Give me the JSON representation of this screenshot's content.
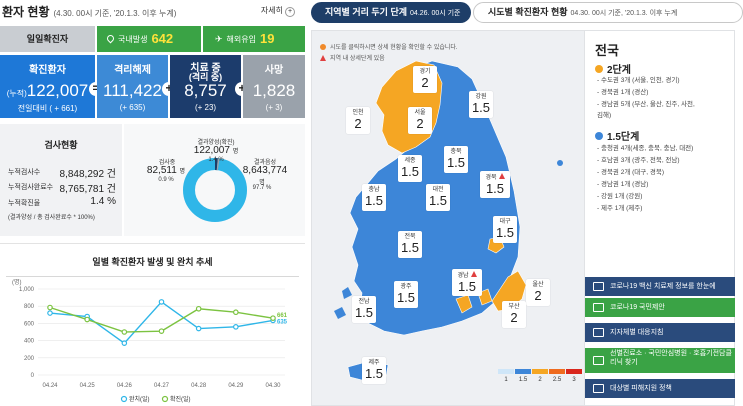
{
  "header": {
    "title": "환자 현황",
    "subtitle": "(4.30. 00시 기준, '20.1.3. 이후 누계)",
    "more_label": "자세히",
    "more_icon": "plus-circle-icon"
  },
  "daily_confirmed": {
    "label": "일일확진자",
    "domestic_label": "국내발생",
    "domestic_value": "642",
    "domestic_icon": "location-pin-icon",
    "overseas_label": "해외유입",
    "overseas_value": "19",
    "overseas_icon": "airplane-icon"
  },
  "summary": {
    "confirmed": {
      "label": "확진환자",
      "prefix": "(누적)",
      "value": "122,007",
      "sub": "전일대비 ( + 661)"
    },
    "released": {
      "label": "격리해제",
      "value": "111,422",
      "sub": "(+ 635)"
    },
    "isolated": {
      "label": "치료 중",
      "label2": "(격리 중)",
      "value": "8,757",
      "sub": "(+ 23)"
    },
    "deaths": {
      "label": "사망",
      "value": "1,828",
      "sub": "(+ 3)"
    },
    "op_minus": "=",
    "op_plus1": "+",
    "op_plus2": "+"
  },
  "tests": {
    "title": "검사현황",
    "items": [
      {
        "label": "누적검사수",
        "value": "8,848,292 건"
      },
      {
        "label": "누적검사완료수",
        "value": "8,765,781 건"
      },
      {
        "label": "누적확진율",
        "value": "1.4 %"
      }
    ],
    "note": "(결과양성 / 총 검사완료수 * 100%)"
  },
  "donut": {
    "positive_label": "결과양성(확진)",
    "positive_value": "122,007",
    "positive_unit": "명",
    "positive_pct": "1.4 %",
    "testing_label": "검사중",
    "testing_value": "82,511",
    "testing_unit": "명",
    "testing_pct": "0.9 %",
    "negative_label": "결과음성",
    "negative_value": "8,643,774",
    "negative_unit": "명",
    "negative_pct": "97.7 %",
    "negative_color": "#2fb6e8",
    "positive_color": "#1e3e68",
    "testing_color": "#9aa2ab"
  },
  "trend": {
    "title": "일별 확진환자 발생 및 완치 추세",
    "unit": "(명)",
    "legend_recovered": "완치(일)",
    "legend_confirmed": "확진(일)"
  },
  "chart_data": {
    "type": "line",
    "title": "일별 확진환자 발생 및 완치 추세",
    "ylabel": "(명)",
    "categories": [
      "04.24",
      "04.25",
      "04.26",
      "04.27",
      "04.28",
      "04.29",
      "04.30"
    ],
    "ylim": [
      0,
      1000
    ],
    "yticks": [
      "0",
      "200",
      "400",
      "600",
      "800",
      "1,000"
    ],
    "grid": true,
    "legend": "bottom",
    "series": [
      {
        "name": "완치(일)",
        "color": "#2fb6e8",
        "values": [
          720,
          680,
          370,
          850,
          540,
          560,
          635
        ]
      },
      {
        "name": "확진(일)",
        "color": "#7cc341",
        "values": [
          785,
          645,
          500,
          510,
          770,
          730,
          661
        ]
      }
    ],
    "end_labels": [
      "635",
      "661"
    ]
  },
  "map": {
    "tab_active": "지역별 거리 두기 단계",
    "tab_active_date": "04.26. 00시 기준",
    "tab_other": "시도별 확진환자 현황",
    "tab_other_date": "04.30. 00시 기준, '20.1.3. 이후 누계",
    "legend_click": "시도를 클릭하시면 상세 현황을 확인할 수 있습니다.",
    "legend_detail": "지역 내 상세단계 있음",
    "level2_color": "#f5a623",
    "level15_color": "#3d86d8",
    "regions": [
      {
        "name": "경기",
        "level": "2",
        "warn": false
      },
      {
        "name": "강원",
        "level": "1.5",
        "warn": false
      },
      {
        "name": "인천",
        "level": "2",
        "warn": false
      },
      {
        "name": "서울",
        "level": "2",
        "warn": false
      },
      {
        "name": "충북",
        "level": "1.5",
        "warn": false
      },
      {
        "name": "세종",
        "level": "1.5",
        "warn": false
      },
      {
        "name": "경북",
        "level": "1.5",
        "warn": true
      },
      {
        "name": "충남",
        "level": "1.5",
        "warn": false
      },
      {
        "name": "대전",
        "level": "1.5",
        "warn": false
      },
      {
        "name": "대구",
        "level": "1.5",
        "warn": false
      },
      {
        "name": "전북",
        "level": "1.5",
        "warn": false
      },
      {
        "name": "광주",
        "level": "1.5",
        "warn": false
      },
      {
        "name": "경남",
        "level": "1.5",
        "warn": true
      },
      {
        "name": "울산",
        "level": "2",
        "warn": false
      },
      {
        "name": "전남",
        "level": "1.5",
        "warn": false
      },
      {
        "name": "부산",
        "level": "2",
        "warn": false
      },
      {
        "name": "제주",
        "level": "1.5",
        "warn": false
      }
    ],
    "scale": [
      {
        "label": "1",
        "color": "#cfe6f8"
      },
      {
        "label": "1.5",
        "color": "#3d86d8"
      },
      {
        "label": "2",
        "color": "#f5a623"
      },
      {
        "label": "2.5",
        "color": "#ef6b1f"
      },
      {
        "label": "3",
        "color": "#d9261c"
      }
    ]
  },
  "national": {
    "title": "전국",
    "level2_title": "2단계",
    "level2_color": "#f5a623",
    "level2_items": [
      "- 수도권 3개 (서울, 인천, 경기)",
      "- 경북권 1개 (경산)",
      "- 경남권 5개 (부산, 울산, 진주, 사천,",
      "  김해)"
    ],
    "level15_title": "1.5단계",
    "level15_color": "#3d86d8",
    "level15_items": [
      "- 충청권 4개(세종, 충북, 충남, 대전)",
      "- 호남권 3개 (광주, 전북, 전남)",
      "- 경북권 2개 (대구, 경북)",
      "- 경남권 1개 (경남)",
      "- 강원 1개 (강원)",
      "- 제주 1개 (제주)"
    ]
  },
  "side_buttons": [
    {
      "label": "코로나19 백신 치료제 정보를 한눈에",
      "color": "#2a4b7c",
      "icon": "vaccine-icon"
    },
    {
      "label": "코로나19 국민제안",
      "color": "#3aa345",
      "icon": "megaphone-icon"
    },
    {
      "label": "지자체별 대응지침",
      "color": "#2a4b7c",
      "icon": "document-icon"
    },
    {
      "label": "선별진료소 · 국민안심병원 · 호흡기전담클리닉 찾기",
      "color": "#3aa345",
      "icon": "hospital-icon"
    },
    {
      "label": "대상별 피해지원 정책",
      "color": "#2a4b7c",
      "icon": "folder-icon"
    }
  ]
}
